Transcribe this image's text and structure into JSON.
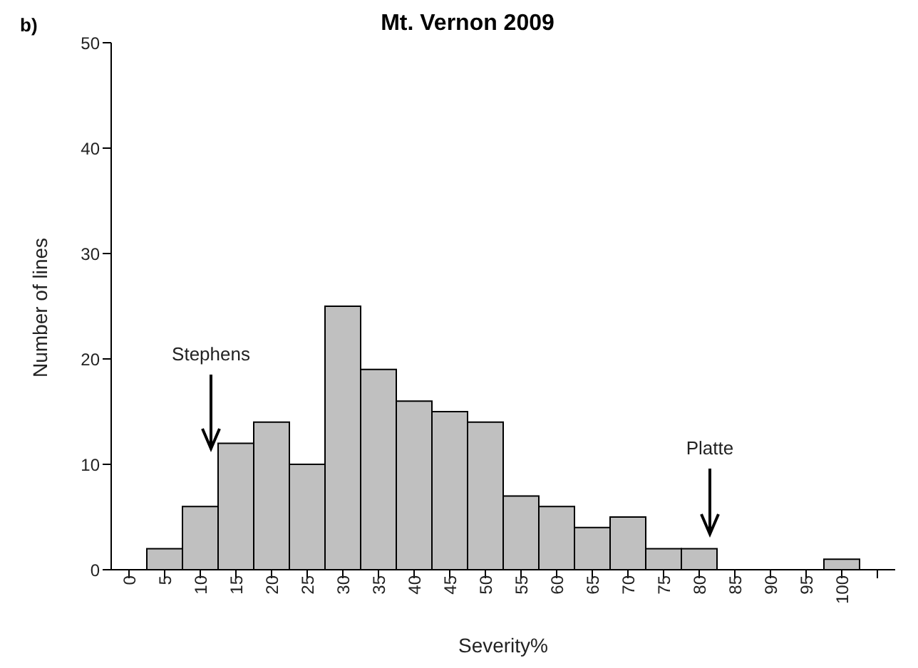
{
  "chart_data": {
    "type": "bar",
    "title": "Mt. Vernon 2009",
    "xlabel": "Severity%",
    "ylabel": "Number of lines",
    "categories": [
      "0",
      "5",
      "10",
      "15",
      "20",
      "25",
      "30",
      "35",
      "40",
      "45",
      "50",
      "55",
      "60",
      "65",
      "70",
      "75",
      "80",
      "85",
      "90",
      "95",
      "100",
      null
    ],
    "values": [
      null,
      2,
      6,
      12,
      14,
      10,
      25,
      19,
      16,
      15,
      14,
      7,
      6,
      4,
      5,
      2,
      2,
      null,
      null,
      null,
      1,
      null
    ],
    "color": "#c0c0c0",
    "ylim": [
      0,
      50
    ],
    "yticks": [
      0,
      10,
      20,
      30,
      40,
      50
    ],
    "grid": false,
    "legend": false,
    "annotations": [
      "b)",
      "Stephens",
      "Platte"
    ]
  }
}
